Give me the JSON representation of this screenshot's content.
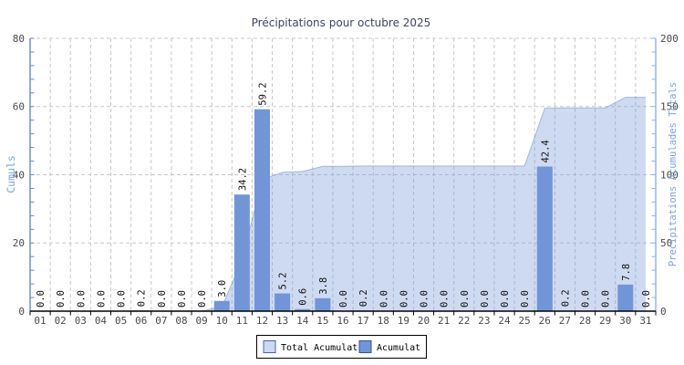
{
  "chart_data": {
    "type": "combo",
    "title": "Précipitations pour octubre 2025",
    "categories": [
      "01",
      "02",
      "03",
      "04",
      "05",
      "06",
      "07",
      "08",
      "09",
      "10",
      "11",
      "12",
      "13",
      "14",
      "15",
      "16",
      "17",
      "18",
      "19",
      "20",
      "21",
      "22",
      "23",
      "24",
      "25",
      "26",
      "27",
      "28",
      "29",
      "30",
      "31"
    ],
    "series": [
      {
        "name": "Total Acumulat",
        "type": "area",
        "axis": "right",
        "values": [
          0.0,
          0.0,
          0.0,
          0.0,
          0.0,
          0.2,
          0.2,
          0.2,
          0.2,
          3.2,
          37.4,
          96.6,
          101.8,
          102.4,
          106.2,
          106.2,
          106.4,
          106.4,
          106.4,
          106.4,
          106.4,
          106.4,
          106.4,
          106.4,
          106.4,
          148.8,
          149.0,
          149.0,
          149.0,
          156.8,
          156.8
        ]
      },
      {
        "name": "Acumulat",
        "type": "bar",
        "axis": "left",
        "values": [
          0.0,
          0.0,
          0.0,
          0.0,
          0.0,
          0.2,
          0.0,
          0.0,
          0.0,
          3.0,
          34.2,
          59.2,
          5.2,
          0.6,
          3.8,
          0.0,
          0.2,
          0.0,
          0.0,
          0.0,
          0.0,
          0.0,
          0.0,
          0.0,
          0.0,
          42.4,
          0.2,
          0.0,
          0.0,
          7.8,
          0.0
        ],
        "labels": [
          "0.0",
          "0.0",
          "0.0",
          "0.0",
          "0.0",
          "0.2",
          "0.0",
          "0.0",
          "0.0",
          "3.0",
          "34.2",
          "59.2",
          "5.2",
          "0.6",
          "3.8",
          "0.0",
          "0.2",
          "0.0",
          "0.0",
          "0.0",
          "0.0",
          "0.0",
          "0.0",
          "0.0",
          "0.0",
          "42.4",
          "0.2",
          "0.0",
          "0.0",
          "7.8",
          "0.0"
        ]
      }
    ],
    "axes": {
      "left": {
        "label": "Cumuls",
        "min": 0,
        "max": 80,
        "major": 20,
        "minor": 4,
        "tick_labels": [
          "0",
          "20",
          "40",
          "60",
          "80"
        ]
      },
      "right": {
        "label": "Precipitations Acumulades Totals",
        "min": 0,
        "max": 200,
        "major": 50,
        "minor": 10,
        "tick_labels": [
          "0",
          "50",
          "100",
          "150",
          "200"
        ]
      },
      "x": {
        "tick_labels": [
          "01",
          "02",
          "03",
          "04",
          "05",
          "06",
          "07",
          "08",
          "09",
          "10",
          "11",
          "12",
          "13",
          "14",
          "15",
          "16",
          "17",
          "18",
          "19",
          "20",
          "21",
          "22",
          "23",
          "24",
          "25",
          "26",
          "27",
          "28",
          "29",
          "30",
          "31"
        ]
      }
    },
    "grid": {
      "horizontal": true,
      "vertical": true,
      "style": "dashed"
    },
    "legend": {
      "position": "bottom-center",
      "items": [
        "Total Acumulat",
        "Acumulat"
      ]
    }
  },
  "colors": {
    "background": "#ffffff",
    "title": "#3d4663",
    "axis_title": "#79a1eb",
    "tick_label": "#4a4a4a",
    "left_axis": "#6089d8",
    "right_axis": "#8fb0ec",
    "x_axis": "#000000",
    "grid": "#c8c8c8",
    "bar_fill": "#7295d8",
    "area_fill": "#7295d8",
    "area_outline": "#6c8ccd",
    "legend_area_swatch_fill": "#ccd9f3",
    "legend_area_swatch_border": "#4466b0",
    "legend_bar_swatch_fill": "#7295d8",
    "legend_bar_swatch_border": "#34549e",
    "value_label": "#111111"
  }
}
